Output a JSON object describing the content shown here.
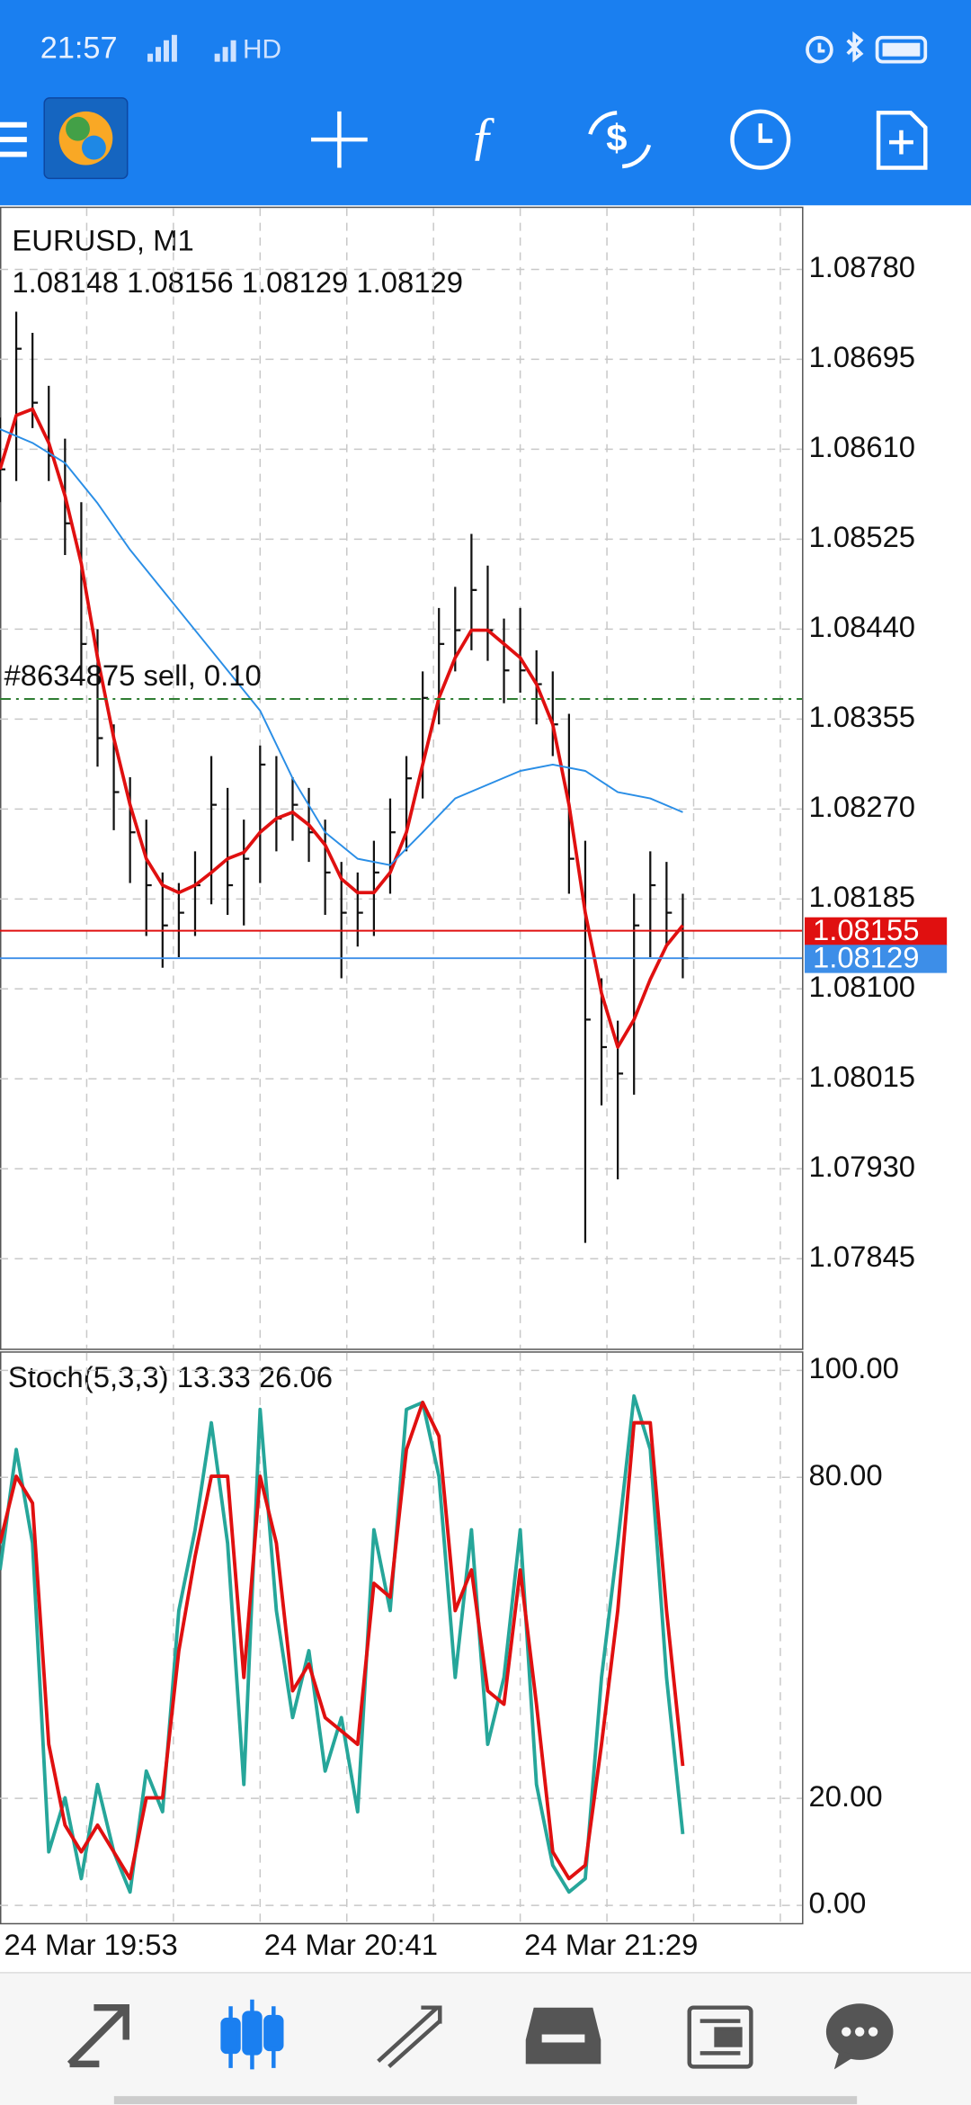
{
  "status_bar": {
    "time": "21:57",
    "hd": "HD"
  },
  "chart_data": [
    {
      "type": "ohlc",
      "title": "EURUSD, M1",
      "subtitle": "1.08148 1.08156 1.08129 1.08129",
      "color": "#111111",
      "x": [
        0,
        3,
        6,
        9,
        12,
        15,
        18,
        21,
        24,
        27,
        30,
        33,
        36,
        39,
        42,
        45,
        48,
        51,
        54,
        57,
        60,
        63,
        66,
        69,
        72,
        75,
        78,
        81,
        84,
        87,
        90,
        93,
        96,
        99,
        102,
        105,
        108,
        111,
        114,
        117,
        120,
        123,
        126
      ],
      "high": [
        1.0864,
        1.0874,
        1.0872,
        1.0867,
        1.0862,
        1.0856,
        1.0844,
        1.0835,
        1.083,
        1.0826,
        1.0821,
        1.082,
        1.0823,
        1.0832,
        1.0829,
        1.0826,
        1.0833,
        1.0832,
        1.083,
        1.0829,
        1.0826,
        1.0822,
        1.0821,
        1.0824,
        1.0828,
        1.0832,
        1.084,
        1.0846,
        1.0848,
        1.0853,
        1.085,
        1.0845,
        1.0846,
        1.0842,
        1.084,
        1.0836,
        1.0824,
        1.0811,
        1.0807,
        1.0819,
        1.0823,
        1.0822,
        1.0819
      ],
      "low": [
        1.0856,
        1.0858,
        1.0863,
        1.0858,
        1.0851,
        1.0839,
        1.0831,
        1.0825,
        1.082,
        1.0815,
        1.0812,
        1.0813,
        1.0815,
        1.0818,
        1.0817,
        1.0816,
        1.082,
        1.0823,
        1.0824,
        1.0822,
        1.0817,
        1.0811,
        1.0814,
        1.0815,
        1.0819,
        1.0823,
        1.0828,
        1.0835,
        1.084,
        1.0842,
        1.0841,
        1.0837,
        1.0838,
        1.0835,
        1.0832,
        1.0819,
        1.0786,
        1.0799,
        1.0792,
        1.08,
        1.0813,
        1.0814,
        1.0811
      ],
      "close": [
        1.08591,
        1.08705,
        1.08654,
        1.08604,
        1.0854,
        1.08426,
        1.08337,
        1.08286,
        1.08248,
        1.08198,
        1.0816,
        1.08172,
        1.08198,
        1.08274,
        1.08198,
        1.08223,
        1.08312,
        1.08261,
        1.08274,
        1.08248,
        1.0821,
        1.08172,
        1.08172,
        1.0821,
        1.08248,
        1.08299,
        1.08375,
        1.08426,
        1.08439,
        1.08477,
        1.08439,
        1.08401,
        1.08401,
        1.08388,
        1.0835,
        1.08223,
        1.08071,
        1.08045,
        1.0802,
        1.0816,
        1.08198,
        1.08172,
        1.08129
      ],
      "overlays": [
        {
          "color": "#e01010",
          "values": [
            1.08591,
            1.08642,
            1.08648,
            1.08616,
            1.08566,
            1.08502,
            1.08413,
            1.08337,
            1.08274,
            1.08223,
            1.08198,
            1.08191,
            1.08198,
            1.0821,
            1.08223,
            1.08229,
            1.08248,
            1.08261,
            1.08267,
            1.08255,
            1.08236,
            1.08204,
            1.08191,
            1.08191,
            1.0821,
            1.08248,
            1.08312,
            1.08375,
            1.08413,
            1.08439,
            1.08439,
            1.08426,
            1.08413,
            1.08388,
            1.0835,
            1.08274,
            1.08172,
            1.08096,
            1.08045,
            1.08071,
            1.08109,
            1.08141,
            1.0816
          ]
        },
        {
          "color": "#2a8ee6",
          "x": [
            0,
            6,
            12,
            18,
            24,
            30,
            36,
            42,
            48,
            54,
            60,
            66,
            72,
            78,
            84,
            90,
            96,
            102,
            108,
            114,
            120,
            126
          ],
          "values": [
            1.08629,
            1.08616,
            1.08597,
            1.08559,
            1.08515,
            1.08477,
            1.08439,
            1.08401,
            1.08363,
            1.08299,
            1.08248,
            1.08223,
            1.08217,
            1.08248,
            1.0828,
            1.08293,
            1.08306,
            1.08312,
            1.08306,
            1.08286,
            1.0828,
            1.08267
          ]
        }
      ],
      "hlines": [
        {
          "value": 1.08374,
          "label": "#8634875 sell, 0.10",
          "color": "#2e7d32",
          "dash": true
        },
        {
          "value": 1.08155,
          "label": "1.08155",
          "color": "#e01010",
          "dash": false
        },
        {
          "value": 1.08129,
          "label": "1.08129",
          "color": "#3d8ee8",
          "dash": false
        }
      ],
      "xlim": [
        0,
        148
      ],
      "xticks": [
        {
          "value": 0,
          "label": "24 Mar 19:53"
        },
        {
          "value": 48,
          "label": "24 Mar 20:41"
        },
        {
          "value": 96,
          "label": "24 Mar 21:29"
        }
      ],
      "xgrid": [
        16,
        32,
        48,
        64,
        80,
        96,
        112,
        128,
        144
      ],
      "ylim": [
        1.0776,
        1.08838
      ],
      "yticks": [
        {
          "value": 1.0878,
          "label": "1.08780"
        },
        1.08695,
        {
          "value": 1.0861,
          "label": "1.08610"
        },
        1.08525,
        {
          "value": 1.0844,
          "label": "1.08440"
        },
        1.08355,
        {
          "value": 1.0827,
          "label": "1.08270"
        },
        1.08185,
        {
          "value": 1.081,
          "label": "1.08100"
        },
        1.08015,
        {
          "value": 1.0793,
          "label": "1.07930"
        },
        1.07845
      ],
      "grid": true
    },
    {
      "type": "line",
      "title": "Stoch(5,3,3) 13.33 26.06",
      "x": [
        0,
        3,
        6,
        9,
        12,
        15,
        18,
        21,
        24,
        27,
        30,
        33,
        36,
        39,
        42,
        45,
        48,
        51,
        54,
        57,
        60,
        63,
        66,
        69,
        72,
        75,
        78,
        81,
        84,
        87,
        90,
        93,
        96,
        99,
        102,
        105,
        108,
        111,
        114,
        117,
        120,
        123,
        126
      ],
      "series": [
        {
          "color": "#26a69a",
          "values": [
            62.7,
            85.2,
            67.7,
            10,
            20.1,
            5,
            22.6,
            10,
            2.5,
            25.1,
            17.5,
            55.1,
            70.2,
            90.2,
            67.7,
            22.6,
            92.7,
            55.1,
            35.1,
            47.6,
            25.1,
            35.1,
            17.5,
            70.2,
            55.1,
            92.7,
            94,
            80.2,
            42.6,
            70.2,
            30.1,
            42.6,
            70.2,
            22.6,
            7.5,
            2.5,
            5,
            42.6,
            67.7,
            95.2,
            85.2,
            42.6,
            13.33
          ]
        },
        {
          "color": "#e01010",
          "values": [
            67.7,
            80.2,
            75.2,
            30.1,
            15,
            10,
            15,
            10,
            5,
            20.1,
            20.1,
            47.6,
            65.2,
            80.2,
            80.2,
            42.6,
            80.2,
            67.7,
            40.1,
            45.1,
            35.1,
            32.6,
            30.1,
            60.2,
            57.6,
            85.2,
            94,
            87.7,
            55.1,
            62.7,
            40.1,
            37.6,
            62.7,
            37.6,
            10,
            5,
            7.5,
            30.1,
            55.1,
            90.2,
            90.2,
            55.1,
            26.06
          ]
        }
      ],
      "xlim": [
        0,
        148
      ],
      "xgrid": [
        16,
        32,
        48,
        64,
        80,
        96,
        112,
        128,
        144
      ],
      "ylim": [
        -3.3,
        103.3
      ],
      "yticks": [
        {
          "value": 100,
          "label": "100.00"
        },
        {
          "value": 80,
          "label": "80.00"
        },
        {
          "value": 20,
          "label": "20.00"
        },
        {
          "value": 0,
          "label": "0.00"
        }
      ],
      "grid": true
    }
  ]
}
